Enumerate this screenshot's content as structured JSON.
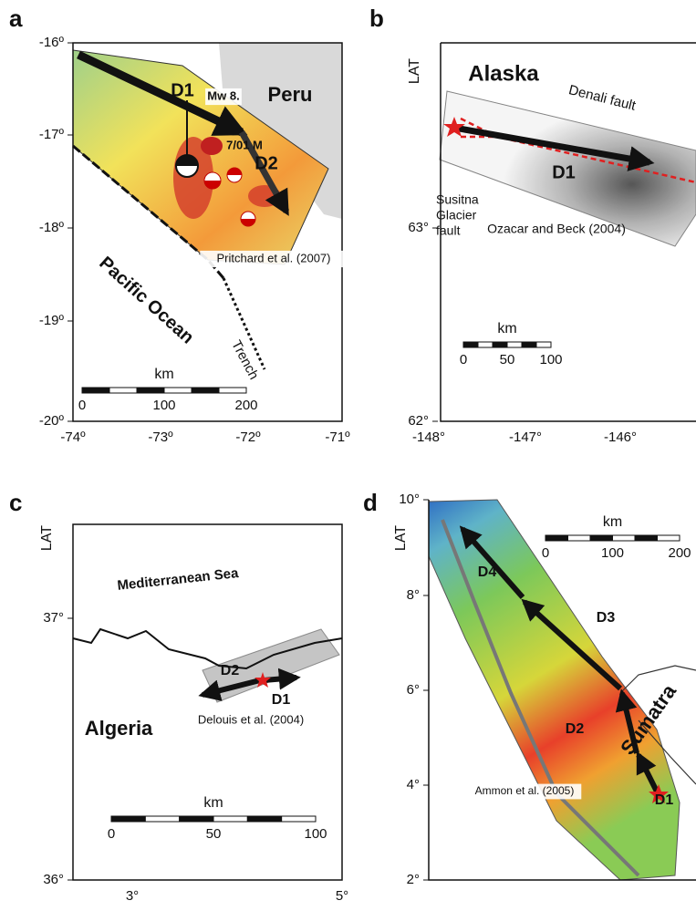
{
  "panels": [
    {
      "letter": "a",
      "yticks": [
        "-16º",
        "-17º",
        "-18º",
        "-19º",
        "-20º"
      ],
      "xticks": [
        "-74º",
        "-73º",
        "-72º",
        "-71º"
      ],
      "labels": [
        "D1",
        "Mw 8.",
        "Peru",
        "7/01 M",
        "D2",
        "Pritchard et al. (2007)",
        "Pacific Ocean",
        "Trench"
      ],
      "scale": {
        "title": "km",
        "ticks": [
          "0",
          "100",
          "200"
        ]
      }
    },
    {
      "letter": "b",
      "axis_label": "LAT",
      "yticks": [
        "63°",
        "62°"
      ],
      "xticks": [
        "-148°",
        "-147°",
        "-146°"
      ],
      "labels": [
        "Alaska",
        "Denali fault",
        "D1",
        "Susitna",
        "Glacier",
        "fault",
        "Ozacar and Beck (2004)"
      ],
      "scale": {
        "title": "km",
        "ticks": [
          "0",
          "50",
          "100"
        ]
      }
    },
    {
      "letter": "c",
      "axis_label": "LAT",
      "yticks": [
        "37°",
        "36°"
      ],
      "xticks": [
        "3°",
        "5°"
      ],
      "labels": [
        "Mediterranean Sea",
        "D2",
        "D1",
        "Delouis et al. (2004)",
        "Algeria"
      ],
      "scale": {
        "title": "km",
        "ticks": [
          "0",
          "50",
          "100"
        ]
      }
    },
    {
      "letter": "d",
      "axis_label": "LAT",
      "yticks": [
        "10°",
        "8°",
        "6°",
        "4°",
        "2°"
      ],
      "xticks": [],
      "labels": [
        "D4",
        "D3",
        "D2",
        "Sumatra",
        "D1",
        "Ammon et al. (2005)"
      ],
      "scale": {
        "title": "km",
        "ticks": [
          "0",
          "100",
          "200"
        ]
      }
    }
  ]
}
